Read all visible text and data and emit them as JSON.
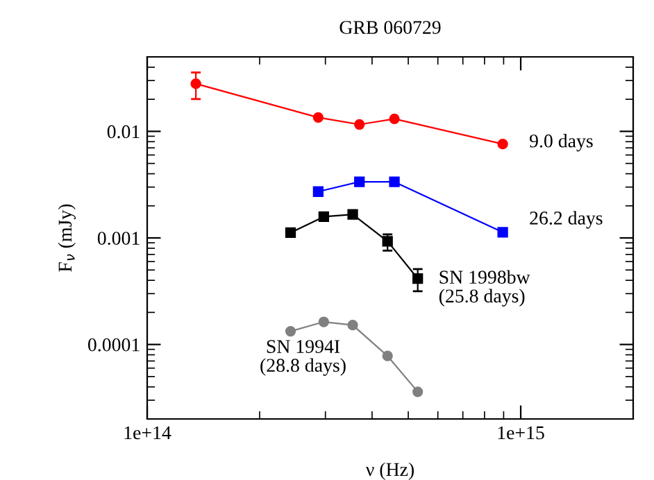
{
  "chart_data": {
    "type": "line",
    "title": "GRB 060729",
    "xlabel": "ν (Hz)",
    "ylabel": "F$_{ν}$ (mJy)",
    "log": "xy",
    "grid": false,
    "legend": false,
    "xlim": [
      100000000000000.0,
      2000000000000000.0
    ],
    "ylim": [
      2e-05,
      0.05
    ],
    "xticks": [
      {
        "value": 100000000000000.0,
        "label": "1e+14"
      },
      {
        "value": 1000000000000000.0,
        "label": "1e+15"
      }
    ],
    "yticks": [
      0.0001,
      0.001,
      0.01
    ],
    "series": [
      {
        "color": "#ff0000",
        "marker": "circle",
        "x": [
          135000000000000.0,
          287000000000000.0,
          370000000000000.0,
          459000000000000.0,
          895000000000000.0
        ],
        "values": [
          0.028,
          0.0135,
          0.0116,
          0.0131,
          0.0076
        ],
        "errors": [
          [
            0.0201,
            0.0357
          ],
          null,
          null,
          null,
          null
        ]
      },
      {
        "color": "#0000ff",
        "marker": "square",
        "x": [
          287000000000000.0,
          370000000000000.0,
          459000000000000.0,
          895000000000000.0
        ],
        "values": [
          0.00272,
          0.00336,
          0.00336,
          0.00113
        ]
      },
      {
        "color": "#000000",
        "marker": "square",
        "x": [
          242000000000000.0,
          297000000000000.0,
          355000000000000.0,
          440000000000000.0,
          530000000000000.0
        ],
        "values": [
          0.00112,
          0.00158,
          0.00166,
          0.00093,
          0.000415
        ],
        "errors": [
          null,
          null,
          null,
          [
            0.00076,
            0.00108
          ],
          [
            0.000316,
            0.00051
          ]
        ]
      },
      {
        "color": "#808080",
        "marker": "circle",
        "x": [
          242000000000000.0,
          297000000000000.0,
          355000000000000.0,
          440000000000000.0,
          530000000000000.0
        ],
        "values": [
          0.000133,
          0.000163,
          0.000152,
          7.8e-05,
          3.6e-05
        ]
      }
    ],
    "annotations": [
      "9.0 days",
      "26.2 days",
      "SN 1998bw\n(25.8 days)",
      "SN 1994I\n(28.8 days)"
    ]
  }
}
